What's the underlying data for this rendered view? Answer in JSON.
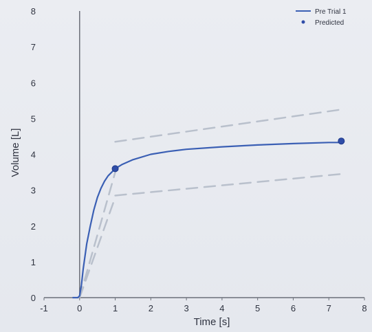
{
  "chart_data": {
    "type": "line",
    "title": "",
    "xlabel": "Time [s]",
    "ylabel": "Volume [L]",
    "xlim": [
      -1,
      8
    ],
    "ylim": [
      0,
      8
    ],
    "xticks": [
      -1,
      0,
      1,
      2,
      3,
      4,
      5,
      6,
      7,
      8
    ],
    "yticks": [
      0,
      1,
      2,
      3,
      4,
      5,
      6,
      7,
      8
    ],
    "grid": false,
    "legend_position": "top-right",
    "series": [
      {
        "name": "Pre Trial 1",
        "style": "solid-line",
        "color": "#3a5fb4",
        "x": [
          -0.2,
          -0.05,
          0,
          0.05,
          0.1,
          0.2,
          0.3,
          0.4,
          0.5,
          0.6,
          0.7,
          0.8,
          1.0,
          1.2,
          1.5,
          2.0,
          2.5,
          3.0,
          4.0,
          5.0,
          6.0,
          7.0,
          7.35
        ],
        "y": [
          0,
          0,
          0.05,
          0.35,
          0.8,
          1.5,
          2.0,
          2.45,
          2.8,
          3.05,
          3.25,
          3.4,
          3.6,
          3.72,
          3.85,
          4.0,
          4.08,
          4.14,
          4.21,
          4.26,
          4.3,
          4.33,
          4.33
        ]
      },
      {
        "name": "Predicted",
        "style": "markers",
        "color": "#2f4da8",
        "x": [
          1.0,
          7.35
        ],
        "y": [
          3.6,
          4.37
        ]
      }
    ],
    "reference_bands": {
      "color": "#b9c0cc",
      "lines": [
        {
          "x": [
            0,
            1.0
          ],
          "y": [
            0,
            3.5
          ]
        },
        {
          "x": [
            0,
            1.0
          ],
          "y": [
            0,
            2.8
          ]
        },
        {
          "x": [
            1.0,
            7.35
          ],
          "y": [
            4.35,
            5.25
          ]
        },
        {
          "x": [
            1.0,
            7.35
          ],
          "y": [
            2.85,
            3.45
          ]
        }
      ]
    }
  }
}
